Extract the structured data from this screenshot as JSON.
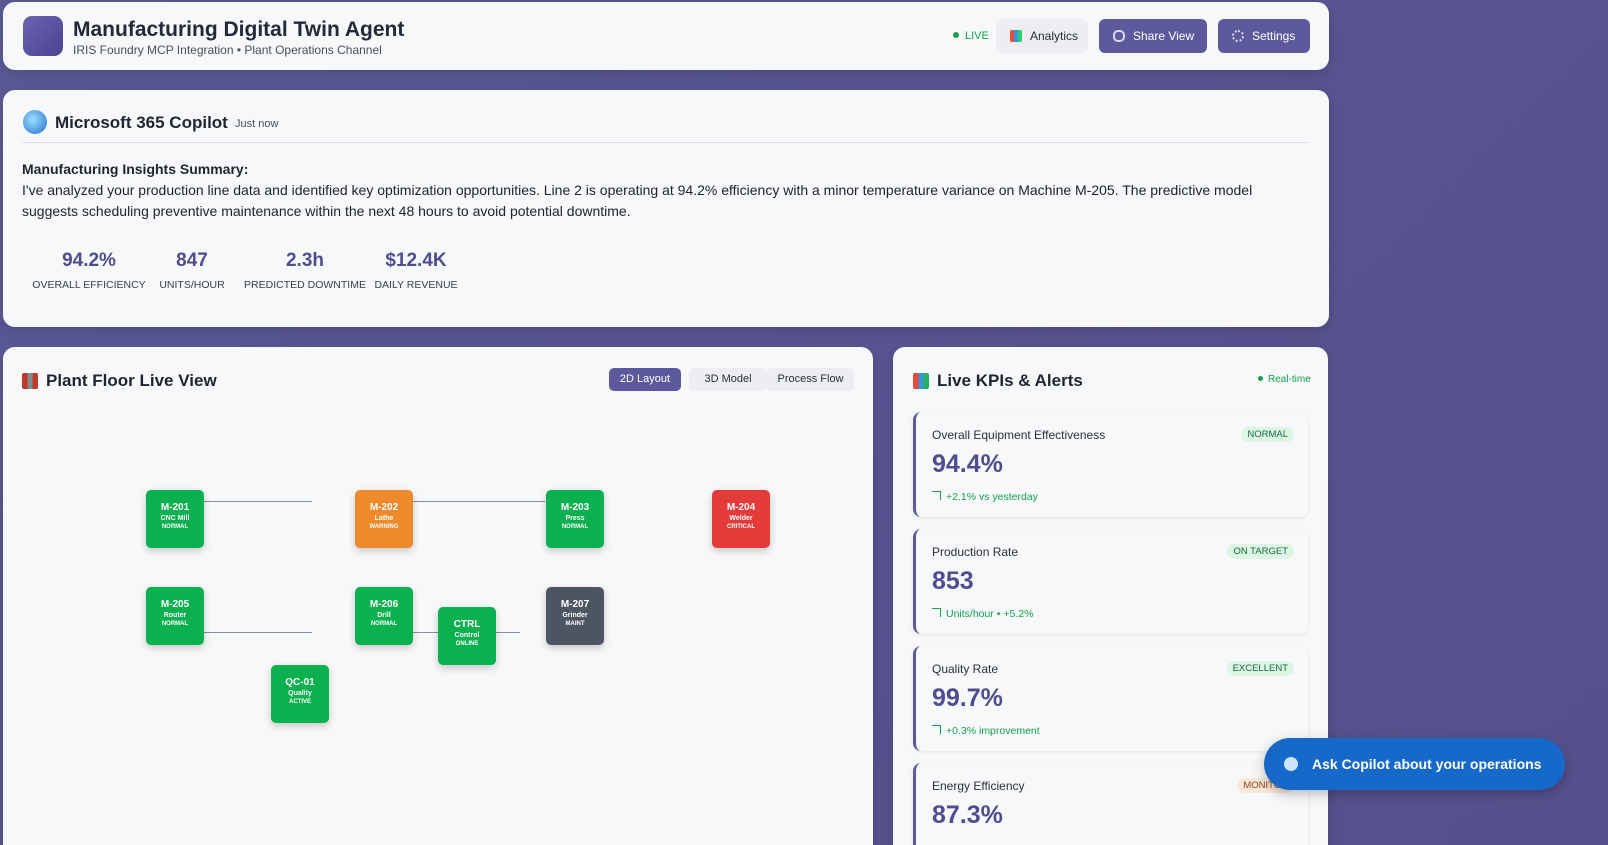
{
  "header": {
    "title": "Manufacturing Digital Twin Agent",
    "subtitle": "IRIS Foundry MCP Integration • Plant Operations Channel",
    "live": "LIVE",
    "buttons": [
      "Analytics",
      "Share View",
      "Settings"
    ]
  },
  "copilot": {
    "name": "Microsoft 365 Copilot",
    "time": "Just now",
    "heading": "Manufacturing Insights Summary:",
    "body": "I've analyzed your production line data and identified key optimization opportunities. Line 2 is operating at 94.2% efficiency with a minor temperature variance on Machine M-205. The predictive model suggests scheduling preventive maintenance within the next 48 hours to avoid potential downtime.",
    "metrics": [
      {
        "value": "94.2%",
        "label": "OVERALL EFFICIENCY"
      },
      {
        "value": "847",
        "label": "UNITS/HOUR"
      },
      {
        "value": "2.3h",
        "label": "PREDICTED DOWNTIME"
      },
      {
        "value": "$12.4K",
        "label": "DAILY REVENUE"
      }
    ]
  },
  "plant": {
    "title": "Plant Floor Live View",
    "tabs": [
      "2D Layout",
      "3D Model",
      "Process Flow"
    ],
    "machines": [
      {
        "id": "M-201",
        "type": "CNC Mill",
        "status": "NORMAL"
      },
      {
        "id": "M-202",
        "type": "Lathe",
        "status": "WARNING"
      },
      {
        "id": "M-203",
        "type": "Press",
        "status": "NORMAL"
      },
      {
        "id": "M-204",
        "type": "Welder",
        "status": "CRITICAL"
      },
      {
        "id": "M-205",
        "type": "Router",
        "status": "NORMAL"
      },
      {
        "id": "M-206",
        "type": "Drill",
        "status": "NORMAL"
      },
      {
        "id": "M-207",
        "type": "Grinder",
        "status": "MAINT"
      },
      {
        "id": "CTRL",
        "type": "Control",
        "status": "ONLINE"
      },
      {
        "id": "QC-01",
        "type": "Quality",
        "status": "ACTIVE"
      }
    ]
  },
  "kpis": {
    "title": "Live KPIs & Alerts",
    "realtime": "Real-time",
    "cards": [
      {
        "label": "Overall Equipment Effectiveness",
        "status": "NORMAL",
        "value": "94.4%",
        "trend": "+2.1% vs yesterday"
      },
      {
        "label": "Production Rate",
        "status": "ON TARGET",
        "value": "853",
        "trend": "Units/hour • +5.2%"
      },
      {
        "label": "Quality Rate",
        "status": "EXCELLENT",
        "value": "99.7%",
        "trend": "+0.3% improvement"
      },
      {
        "label": "Energy Efficiency",
        "status": "MONITOR",
        "value": "87.3%"
      }
    ]
  },
  "fab": "Ask Copilot about your operations"
}
